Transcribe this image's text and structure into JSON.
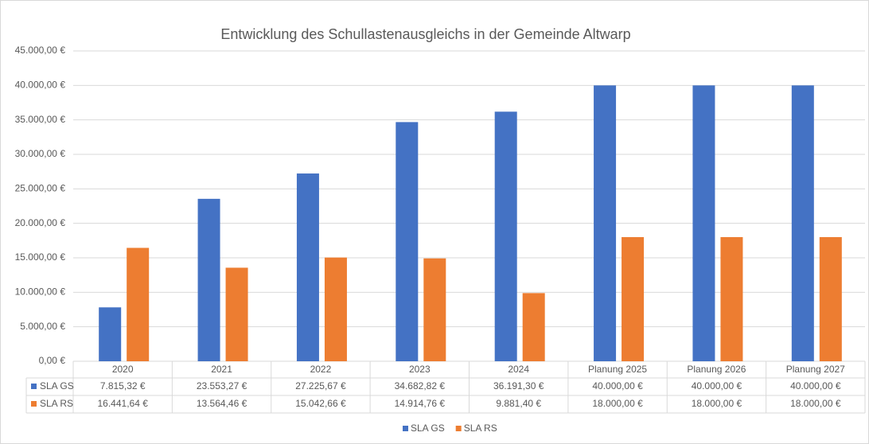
{
  "chart_data": {
    "type": "bar",
    "title": "Entwicklung des Schullastenausgleichs in der Gemeinde Altwarp",
    "categories": [
      "2020",
      "2021",
      "2022",
      "2023",
      "2024",
      "Planung 2025",
      "Planung 2026",
      "Planung 2027"
    ],
    "series": [
      {
        "name": "SLA GS",
        "color": "#4472c4",
        "values": [
          7815.32,
          23553.27,
          27225.67,
          34682.82,
          36191.3,
          40000,
          40000,
          40000
        ],
        "value_labels": [
          "7.815,32 €",
          "23.553,27 €",
          "27.225,67 €",
          "34.682,82 €",
          "36.191,30 €",
          "40.000,00 €",
          "40.000,00 €",
          "40.000,00 €"
        ]
      },
      {
        "name": "SLA RS",
        "color": "#ed7d31",
        "values": [
          16441.64,
          13564.46,
          15042.66,
          14914.76,
          9881.4,
          18000,
          18000,
          18000
        ],
        "value_labels": [
          "16.441,64 €",
          "13.564,46 €",
          "15.042,66 €",
          "14.914,76 €",
          "9.881,40 €",
          "18.000,00 €",
          "18.000,00 €",
          "18.000,00 €"
        ]
      }
    ],
    "ylim": [
      0,
      45000
    ],
    "yticks": [
      {
        "value": 0,
        "label": "0,00 €"
      },
      {
        "value": 5000,
        "label": "5.000,00 €"
      },
      {
        "value": 10000,
        "label": "10.000,00 €"
      },
      {
        "value": 15000,
        "label": "15.000,00 €"
      },
      {
        "value": 20000,
        "label": "20.000,00 €"
      },
      {
        "value": 25000,
        "label": "25.000,00 €"
      },
      {
        "value": 30000,
        "label": "30.000,00 €"
      },
      {
        "value": 35000,
        "label": "35.000,00 €"
      },
      {
        "value": 40000,
        "label": "40.000,00 €"
      },
      {
        "value": 45000,
        "label": "45.000,00 €"
      }
    ],
    "grid": true,
    "legend": "bottom"
  }
}
